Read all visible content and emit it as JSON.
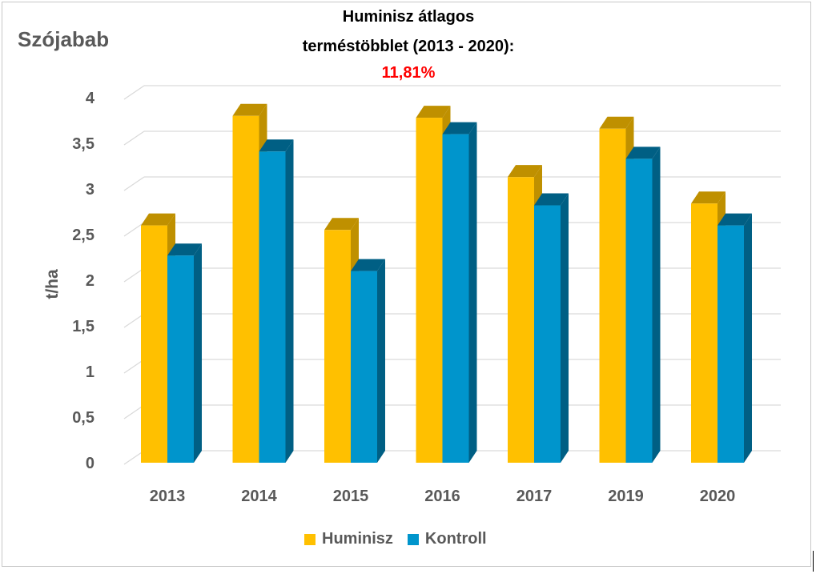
{
  "corner_title": "Szójabab",
  "headline": {
    "line1": "Huminisz átlagos",
    "line2": "terméstöbblet (2013 - 2020):",
    "line3": "11,81%"
  },
  "legend": {
    "huminisz": "Huminisz",
    "kontroll": "Kontroll"
  },
  "colors": {
    "huminisz_front": "#ffc000",
    "huminisz_side": "#bf9000",
    "kontroll_front": "#0095cc",
    "kontroll_side": "#005f84",
    "grid": "#d9d9d9",
    "axis_text": "#595959",
    "highlight": "#ff0000"
  },
  "chart_data": {
    "type": "bar",
    "ylabel": "t/ha",
    "ylim": [
      0,
      4
    ],
    "yticks": [
      0,
      0.5,
      1,
      1.5,
      2,
      2.5,
      3,
      3.5,
      4
    ],
    "ytick_labels": [
      "0",
      "0,5",
      "1",
      "1,5",
      "2",
      "2,5",
      "3",
      "3,5",
      "4"
    ],
    "categories": [
      "2013",
      "2014",
      "2015",
      "2016",
      "2017",
      "2019",
      "2020"
    ],
    "series": [
      {
        "name": "Huminisz",
        "values": [
          2.6,
          3.8,
          2.55,
          3.78,
          3.13,
          3.66,
          2.84
        ]
      },
      {
        "name": "Kontroll",
        "values": [
          2.27,
          3.41,
          2.1,
          3.6,
          2.82,
          3.33,
          2.6
        ]
      }
    ],
    "grid": true,
    "legend_position": "bottom"
  }
}
